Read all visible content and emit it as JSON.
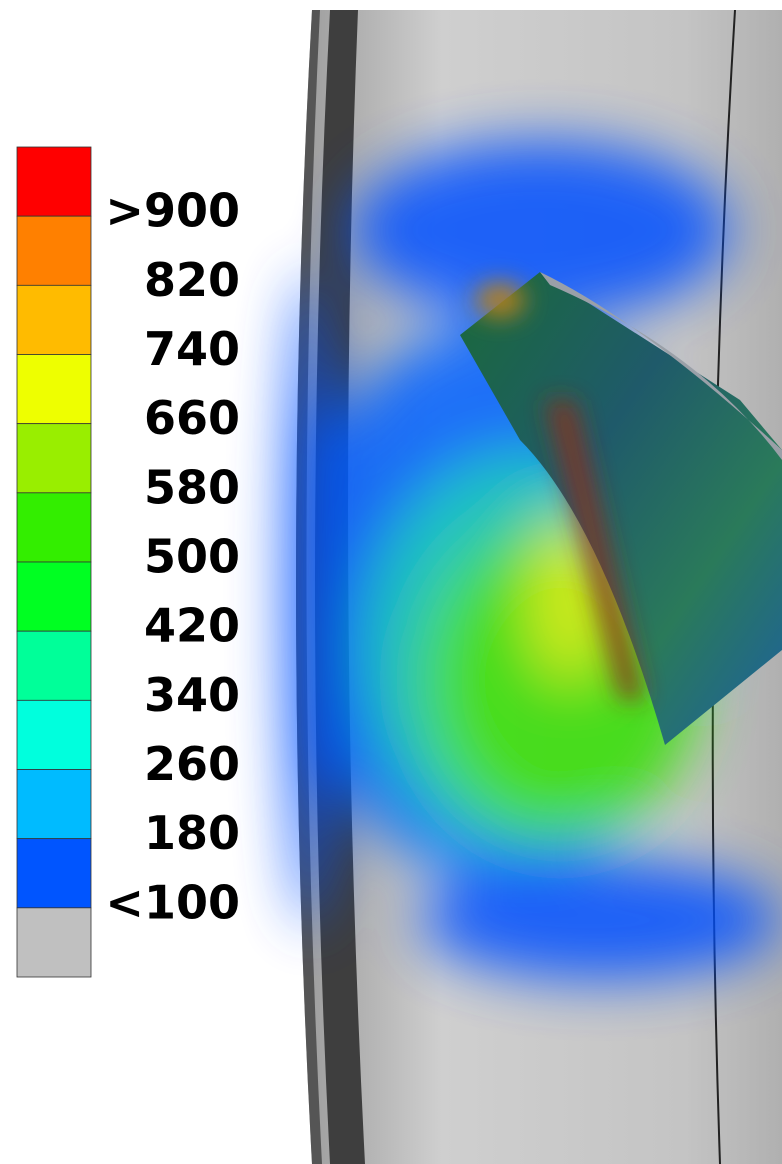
{
  "legend": {
    "colors": [
      "#ff0000",
      "#ff8000",
      "#ffbb00",
      "#eeff00",
      "#99ee00",
      "#33ee00",
      "#00ff22",
      "#00ff99",
      "#00ffdd",
      "#00bbff",
      "#0055ff",
      "#c0c0c0"
    ],
    "labels": [
      ">900",
      "820",
      "740",
      "660",
      "580",
      "500",
      "420",
      "340",
      "260",
      "180",
      "<100"
    ]
  }
}
